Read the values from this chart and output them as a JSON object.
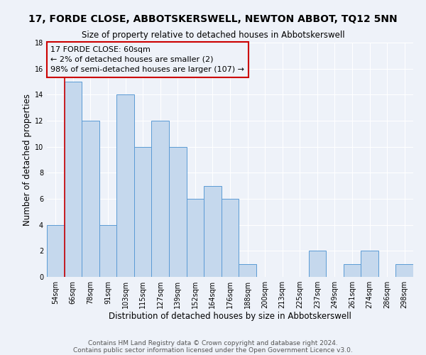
{
  "title": "17, FORDE CLOSE, ABBOTSKERSWELL, NEWTON ABBOT, TQ12 5NN",
  "subtitle": "Size of property relative to detached houses in Abbotskerswell",
  "xlabel": "Distribution of detached houses by size in Abbotskerswell",
  "ylabel": "Number of detached properties",
  "bar_color": "#c5d8ed",
  "bar_edge_color": "#5b9bd5",
  "background_color": "#eef2f9",
  "grid_color": "#ffffff",
  "annotation_box_color": "#cc0000",
  "annotation_line1": "17 FORDE CLOSE: 60sqm",
  "annotation_line2": "← 2% of detached houses are smaller (2)",
  "annotation_line3": "98% of semi-detached houses are larger (107) →",
  "footnote1": "Contains HM Land Registry data © Crown copyright and database right 2024.",
  "footnote2": "Contains public sector information licensed under the Open Government Licence v3.0.",
  "categories": [
    "54sqm",
    "66sqm",
    "78sqm",
    "91sqm",
    "103sqm",
    "115sqm",
    "127sqm",
    "139sqm",
    "152sqm",
    "164sqm",
    "176sqm",
    "188sqm",
    "200sqm",
    "213sqm",
    "225sqm",
    "237sqm",
    "249sqm",
    "261sqm",
    "274sqm",
    "286sqm",
    "298sqm"
  ],
  "values": [
    4,
    15,
    12,
    4,
    14,
    10,
    12,
    10,
    6,
    7,
    6,
    1,
    0,
    0,
    0,
    2,
    0,
    1,
    2,
    0,
    1
  ],
  "ylim": [
    0,
    18
  ],
  "yticks": [
    0,
    2,
    4,
    6,
    8,
    10,
    12,
    14,
    16,
    18
  ],
  "red_line_x": 0.5,
  "highlight_bar_color": "#cc0000",
  "title_fontsize": 10,
  "subtitle_fontsize": 8.5,
  "axis_label_fontsize": 8.5,
  "tick_fontsize": 7,
  "annotation_fontsize": 8,
  "footnote_fontsize": 6.5
}
